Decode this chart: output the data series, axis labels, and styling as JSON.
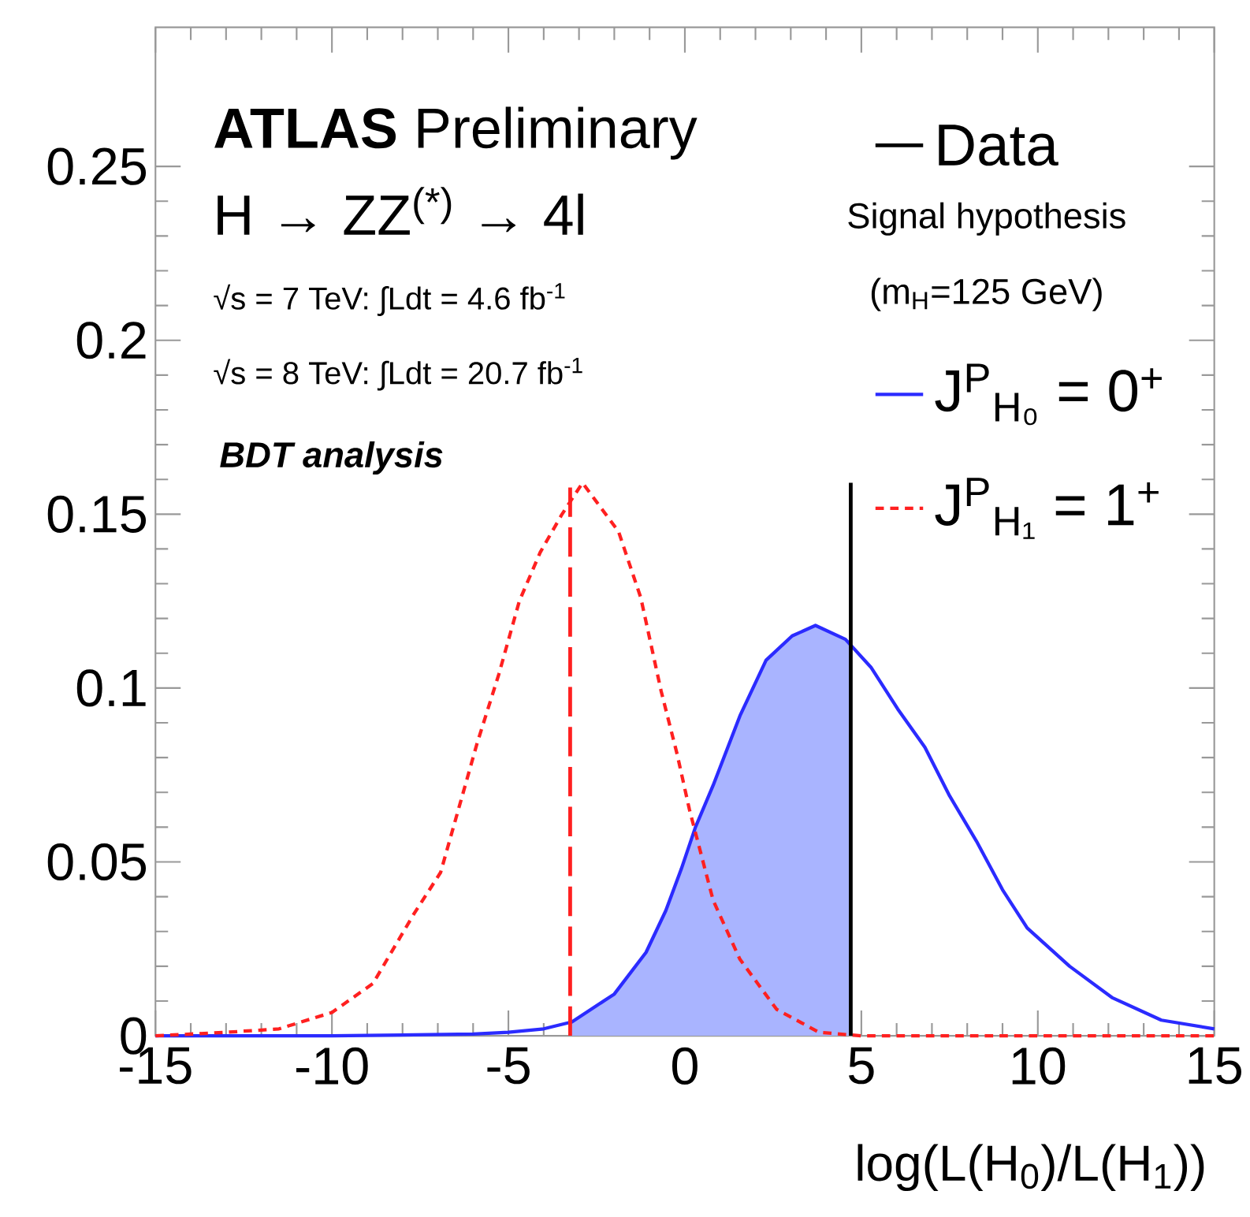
{
  "chart_data": {
    "type": "line",
    "xlabel": "log(L(H$_{0}$)/L(H$_{1}$))",
    "legend_title": "Signal hypothesis",
    "annotations": [
      "**ATLAS** Preliminary",
      "H → ZZ$^{(*)}$ → 4l",
      "√s = 7 TeV: ∫Ldt = 4.6 fb$^{-1}$",
      "√s = 8 TeV: ∫Ldt = 20.7 fb$^{-1}$",
      "BDT analysis",
      "(m$_{H}$=125 GeV)"
    ],
    "series": [
      {
        "name": "J$^{P}$$_{H₀}$ = 0$^{+}$",
        "color": "#2b2bff",
        "line_style": "solid",
        "x": [
          -15,
          -10,
          -6,
          -5,
          -4,
          -3.2,
          -2,
          -1.1,
          -0.54,
          -0.1,
          0.3,
          0.8,
          1.56,
          2.3,
          3.04,
          3.7,
          4.55,
          5.27,
          6.03,
          6.8,
          7.5,
          8.26,
          9,
          9.7,
          10.9,
          12.1,
          13.5,
          15
        ],
        "values": [
          0,
          0,
          0.0005,
          0.001,
          0.002,
          0.004,
          0.012,
          0.024,
          0.036,
          0.048,
          0.06,
          0.072,
          0.092,
          0.108,
          0.115,
          0.118,
          0.114,
          0.106,
          0.094,
          0.083,
          0.069,
          0.056,
          0.042,
          0.031,
          0.02,
          0.011,
          0.0045,
          0.002
        ]
      },
      {
        "name": "J$^{P}$$_{H₁}$ = 1$^{+}$",
        "color": "#ff2020",
        "line_style": "dashed",
        "x": [
          -15,
          -13,
          -11.5,
          -10,
          -8.84,
          -7.68,
          -6.92,
          -5.89,
          -5.27,
          -4.69,
          -4.1,
          -3.48,
          -2.9,
          -1.88,
          -1.25,
          -0.67,
          -0.22,
          0.13,
          0.8,
          1.56,
          2.6,
          3.8,
          5,
          15
        ],
        "values": [
          0,
          0.001,
          0.002,
          0.0067,
          0.015,
          0.035,
          0.047,
          0.084,
          0.104,
          0.125,
          0.139,
          0.15,
          0.159,
          0.145,
          0.126,
          0.099,
          0.081,
          0.065,
          0.039,
          0.022,
          0.0076,
          0.001,
          0,
          0
        ]
      },
      {
        "type": "area",
        "color": "#a9b4ff",
        "x": [
          -3.25,
          -2,
          -1.1,
          -0.54,
          -0.1,
          0.3,
          0.8,
          1.56,
          2.3,
          3.04,
          3.7,
          4.55,
          4.7
        ],
        "values": [
          0.004,
          0.012,
          0.024,
          0.036,
          0.048,
          0.06,
          0.072,
          0.092,
          0.108,
          0.115,
          0.118,
          0.114,
          0.113
        ]
      }
    ],
    "ref_lines": [
      {
        "axis": "x",
        "value": 4.7,
        "label": "Data",
        "color": "#000000",
        "line_style": "solid"
      },
      {
        "axis": "x",
        "value": -3.25,
        "color": "#ff2020",
        "line_style": "dashed"
      }
    ],
    "xlim": [
      -15,
      15
    ],
    "ylim": [
      0,
      0.29
    ],
    "xticks": [
      -15,
      -10,
      -5,
      0,
      5,
      10,
      15
    ],
    "yticks": [
      0,
      0.05,
      0.1,
      0.15,
      0.2,
      0.25
    ],
    "legend": "top right",
    "grid": false,
    "marker": "none"
  }
}
